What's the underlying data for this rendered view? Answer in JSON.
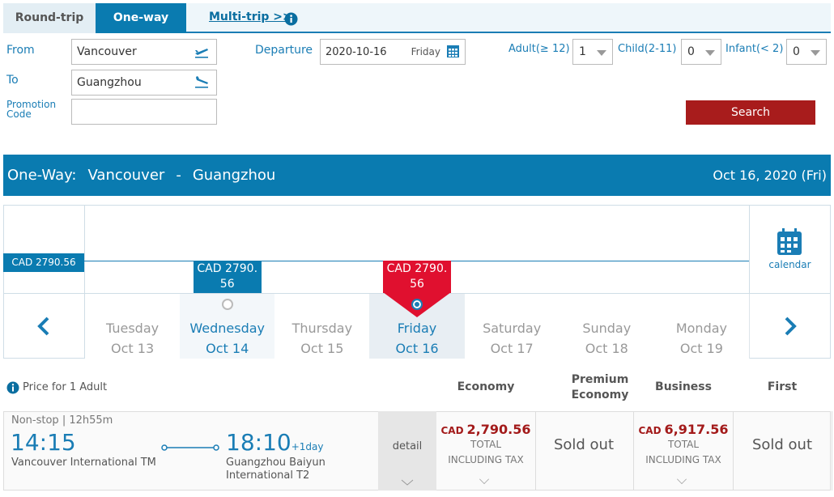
{
  "tabs": [
    "Round-trip",
    "One-way",
    "Multi-trip >>"
  ],
  "form": {
    "from_label": "From",
    "from_value": "Vancouver",
    "to_label": "To",
    "to_value": "Guangzhou",
    "promo_label": "Promotion Code",
    "departure_label": "Departure",
    "departure_value": "2020-10-16",
    "departure_day": "Friday",
    "adult_label": "Adult(≥ 12)",
    "adult_value": "1",
    "child_label": "Child(2-11)",
    "child_value": "0",
    "infant_label": "Infant(< 2)",
    "infant_value": "0",
    "search": "Search"
  },
  "banner": {
    "route_label": "One-Way:",
    "origin": "Vancouver",
    "separator": "-",
    "destination": "Guangzhou",
    "date": "Oct 16, 2020 (Fri)"
  },
  "price_strip": {
    "baseline_label": "CAD 2790.56",
    "calendar": "calendar",
    "days": [
      {
        "weekday": "Tuesday",
        "date": "Oct 13"
      },
      {
        "weekday": "Wednesday",
        "date": "Oct 14",
        "price": "CAD 2790.56"
      },
      {
        "weekday": "Thursday",
        "date": "Oct 15"
      },
      {
        "weekday": "Friday",
        "date": "Oct 16",
        "price": "CAD 2790.56"
      },
      {
        "weekday": "Saturday",
        "date": "Oct 17"
      },
      {
        "weekday": "Sunday",
        "date": "Oct 18"
      },
      {
        "weekday": "Monday",
        "date": "Oct 19"
      }
    ]
  },
  "results": {
    "price_note": "Price for 1 Adult",
    "cabins": [
      "Economy",
      "Premium Economy",
      "Business",
      "First"
    ],
    "flight": {
      "stops": "Non-stop",
      "duration": "12h55m",
      "depart_time": "14:15",
      "depart_airport": "Vancouver International TM",
      "arrive_time": "18:10",
      "day_offset": "+1day",
      "arrive_airport": "Guangzhou Baiyun International T2",
      "detail": "detail",
      "fares": [
        {
          "currency": "CAD",
          "amount": "2,790.56",
          "note": "TOTAL INCLUDING TAX"
        },
        {
          "status": "Sold out"
        },
        {
          "currency": "CAD",
          "amount": "6,917.56",
          "note": "TOTAL INCLUDING TAX"
        },
        {
          "status": "Sold out"
        }
      ]
    }
  }
}
